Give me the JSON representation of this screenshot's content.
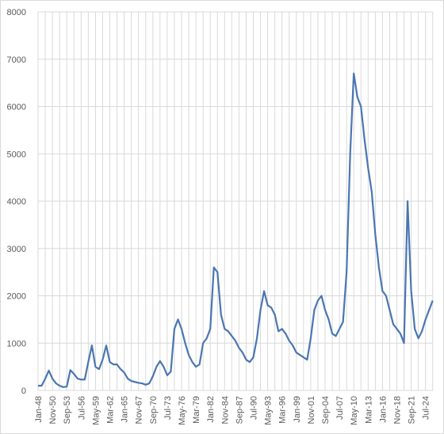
{
  "chart_data": {
    "type": "line",
    "categories": [
      "Jan-48",
      null,
      null,
      null,
      "Nov-50",
      null,
      null,
      null,
      "Sep-53",
      null,
      null,
      null,
      "Jul-56",
      null,
      null,
      null,
      "May-59",
      null,
      null,
      null,
      "Mar-62",
      null,
      null,
      null,
      "Jan-65",
      null,
      null,
      null,
      "Nov-67",
      null,
      null,
      null,
      "Sep-70",
      null,
      null,
      null,
      "Jul-73",
      null,
      null,
      null,
      "May-76",
      null,
      null,
      null,
      "Mar-79",
      null,
      null,
      null,
      "Jan-82",
      null,
      null,
      null,
      "Nov-84",
      null,
      null,
      null,
      "Sep-87",
      null,
      null,
      null,
      "Jul-90",
      null,
      null,
      null,
      "May-93",
      null,
      null,
      null,
      "Mar-96",
      null,
      null,
      null,
      "Jan-99",
      null,
      null,
      null,
      "Nov-01",
      null,
      null,
      null,
      "Sep-04",
      null,
      null,
      null,
      "Jul-07",
      null,
      null,
      null,
      "May-10",
      null,
      null,
      null,
      "Mar-13",
      null,
      null,
      null,
      "Jan-16",
      null,
      null,
      null,
      "Nov-18",
      null,
      null,
      null,
      "Sep-21",
      null,
      null,
      null,
      "Jul-24",
      null,
      null
    ],
    "series": [
      {
        "color": "#4a76b2",
        "values": [
          100,
          100,
          250,
          420,
          250,
          150,
          100,
          70,
          80,
          430,
          350,
          250,
          230,
          230,
          600,
          950,
          500,
          450,
          650,
          950,
          600,
          550,
          550,
          450,
          380,
          250,
          200,
          180,
          160,
          150,
          120,
          150,
          300,
          500,
          620,
          500,
          320,
          400,
          1300,
          1500,
          1300,
          1000,
          750,
          600,
          500,
          550,
          1000,
          1100,
          1300,
          2600,
          2500,
          1600,
          1300,
          1250,
          1150,
          1050,
          900,
          800,
          650,
          600,
          700,
          1100,
          1700,
          2100,
          1800,
          1750,
          1600,
          1250,
          1300,
          1200,
          1050,
          950,
          800,
          750,
          700,
          650,
          1100,
          1700,
          1900,
          2000,
          1700,
          1500,
          1200,
          1150,
          1300,
          1450,
          2500,
          5000,
          6700,
          6200,
          6000,
          5300,
          4700,
          4200,
          3300,
          2600,
          2100,
          2000,
          1700,
          1400,
          1300,
          1200,
          1000,
          4000,
          2100,
          1300,
          1100,
          1250,
          1500,
          1700,
          1900
        ]
      }
    ],
    "ylim": [
      0,
      8000
    ],
    "yticks": [
      0,
      1000,
      2000,
      3000,
      4000,
      5000,
      6000,
      7000,
      8000
    ],
    "grid": true
  }
}
